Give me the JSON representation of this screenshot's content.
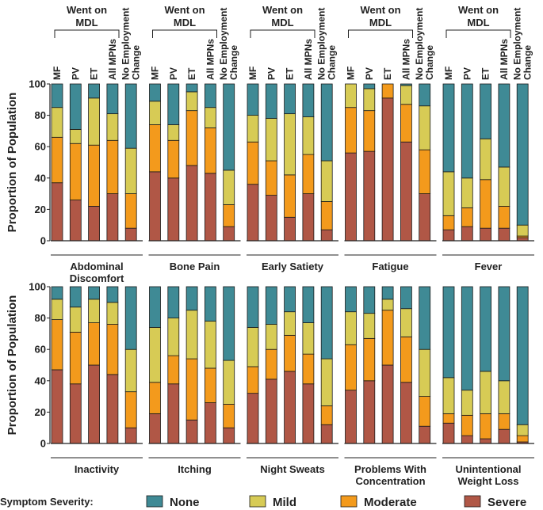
{
  "chart_data": {
    "type": "bar",
    "stacked": true,
    "ylabel": "Proportion of Population",
    "ylim": [
      0,
      100
    ],
    "yticks": [
      0,
      20,
      40,
      60,
      80,
      100
    ],
    "categories": [
      "MF",
      "PV",
      "ET",
      "All MPNs",
      "No Employment Change"
    ],
    "category_label_lines": [
      [
        "MF"
      ],
      [
        "PV"
      ],
      [
        "ET"
      ],
      [
        "All MPNs"
      ],
      [
        "No Employment",
        "Change"
      ]
    ],
    "group_header": [
      "Went on",
      "MDL"
    ],
    "series_order": [
      "Severe",
      "Moderate",
      "Mild",
      "None"
    ],
    "colors": {
      "None": "#3f8a95",
      "Mild": "#d7cb55",
      "Moderate": "#f39a1c",
      "Severe": "#b05746"
    },
    "legend": {
      "title": "Symptom Severity:",
      "entries": [
        "None",
        "Mild",
        "Moderate",
        "Severe"
      ]
    },
    "panels": [
      {
        "label": [
          "Abdominal",
          "Discomfort"
        ],
        "bars": [
          {
            "Severe": 37,
            "Moderate": 29,
            "Mild": 19,
            "None": 15
          },
          {
            "Severe": 26,
            "Moderate": 36,
            "Mild": 9,
            "None": 29
          },
          {
            "Severe": 22,
            "Moderate": 39,
            "Mild": 30,
            "None": 9
          },
          {
            "Severe": 30,
            "Moderate": 34,
            "Mild": 17,
            "None": 19
          },
          {
            "Severe": 8,
            "Moderate": 22,
            "Mild": 29,
            "None": 41
          }
        ]
      },
      {
        "label": [
          "Bone Pain"
        ],
        "bars": [
          {
            "Severe": 44,
            "Moderate": 30,
            "Mild": 15,
            "None": 11
          },
          {
            "Severe": 40,
            "Moderate": 24,
            "Mild": 10,
            "None": 26
          },
          {
            "Severe": 48,
            "Moderate": 35,
            "Mild": 12,
            "None": 5
          },
          {
            "Severe": 43,
            "Moderate": 29,
            "Mild": 13,
            "None": 15
          },
          {
            "Severe": 9,
            "Moderate": 14,
            "Mild": 22,
            "None": 55
          }
        ]
      },
      {
        "label": [
          "Early Satiety"
        ],
        "bars": [
          {
            "Severe": 36,
            "Moderate": 27,
            "Mild": 17,
            "None": 20
          },
          {
            "Severe": 29,
            "Moderate": 22,
            "Mild": 27,
            "None": 22
          },
          {
            "Severe": 15,
            "Moderate": 27,
            "Mild": 39,
            "None": 19
          },
          {
            "Severe": 30,
            "Moderate": 25,
            "Mild": 24,
            "None": 21
          },
          {
            "Severe": 7,
            "Moderate": 18,
            "Mild": 26,
            "None": 49
          }
        ]
      },
      {
        "label": [
          "Fatigue"
        ],
        "bars": [
          {
            "Severe": 56,
            "Moderate": 29,
            "Mild": 15,
            "None": 0
          },
          {
            "Severe": 57,
            "Moderate": 26,
            "Mild": 14,
            "None": 3
          },
          {
            "Severe": 91,
            "Moderate": 9,
            "Mild": 0,
            "None": 0
          },
          {
            "Severe": 63,
            "Moderate": 24,
            "Mild": 12,
            "None": 1
          },
          {
            "Severe": 30,
            "Moderate": 28,
            "Mild": 28,
            "None": 14
          }
        ]
      },
      {
        "label": [
          "Fever"
        ],
        "bars": [
          {
            "Severe": 7,
            "Moderate": 9,
            "Mild": 28,
            "None": 56
          },
          {
            "Severe": 9,
            "Moderate": 12,
            "Mild": 19,
            "None": 60
          },
          {
            "Severe": 8,
            "Moderate": 31,
            "Mild": 26,
            "None": 35
          },
          {
            "Severe": 8,
            "Moderate": 14,
            "Mild": 25,
            "None": 53
          },
          {
            "Severe": 2,
            "Moderate": 1,
            "Mild": 7,
            "None": 90
          }
        ]
      },
      {
        "label": [
          "Inactivity"
        ],
        "bars": [
          {
            "Severe": 47,
            "Moderate": 32,
            "Mild": 13,
            "None": 8
          },
          {
            "Severe": 38,
            "Moderate": 33,
            "Mild": 16,
            "None": 13
          },
          {
            "Severe": 50,
            "Moderate": 27,
            "Mild": 15,
            "None": 8
          },
          {
            "Severe": 44,
            "Moderate": 32,
            "Mild": 14,
            "None": 10
          },
          {
            "Severe": 10,
            "Moderate": 23,
            "Mild": 27,
            "None": 40
          }
        ]
      },
      {
        "label": [
          "Itching"
        ],
        "bars": [
          {
            "Severe": 19,
            "Moderate": 20,
            "Mild": 35,
            "None": 26
          },
          {
            "Severe": 38,
            "Moderate": 18,
            "Mild": 24,
            "None": 20
          },
          {
            "Severe": 15,
            "Moderate": 39,
            "Mild": 31,
            "None": 15
          },
          {
            "Severe": 26,
            "Moderate": 22,
            "Mild": 30,
            "None": 22
          },
          {
            "Severe": 10,
            "Moderate": 15,
            "Mild": 28,
            "None": 47
          }
        ]
      },
      {
        "label": [
          "Night Sweats"
        ],
        "bars": [
          {
            "Severe": 32,
            "Moderate": 17,
            "Mild": 25,
            "None": 26
          },
          {
            "Severe": 41,
            "Moderate": 19,
            "Mild": 16,
            "None": 24
          },
          {
            "Severe": 46,
            "Moderate": 23,
            "Mild": 15,
            "None": 16
          },
          {
            "Severe": 38,
            "Moderate": 19,
            "Mild": 20,
            "None": 23
          },
          {
            "Severe": 12,
            "Moderate": 12,
            "Mild": 30,
            "None": 46
          }
        ]
      },
      {
        "label": [
          "Problems With",
          "Concentration"
        ],
        "bars": [
          {
            "Severe": 34,
            "Moderate": 29,
            "Mild": 21,
            "None": 16
          },
          {
            "Severe": 40,
            "Moderate": 27,
            "Mild": 16,
            "None": 17
          },
          {
            "Severe": 50,
            "Moderate": 35,
            "Mild": 7,
            "None": 8
          },
          {
            "Severe": 39,
            "Moderate": 29,
            "Mild": 18,
            "None": 14
          },
          {
            "Severe": 11,
            "Moderate": 19,
            "Mild": 30,
            "None": 40
          }
        ]
      },
      {
        "label": [
          "Unintentional",
          "Weight Loss"
        ],
        "bars": [
          {
            "Severe": 13,
            "Moderate": 6,
            "Mild": 23,
            "None": 58
          },
          {
            "Severe": 5,
            "Moderate": 13,
            "Mild": 16,
            "None": 66
          },
          {
            "Severe": 3,
            "Moderate": 16,
            "Mild": 27,
            "None": 54
          },
          {
            "Severe": 9,
            "Moderate": 10,
            "Mild": 21,
            "None": 60
          },
          {
            "Severe": 1,
            "Moderate": 4,
            "Mild": 7,
            "None": 88
          }
        ]
      }
    ]
  }
}
